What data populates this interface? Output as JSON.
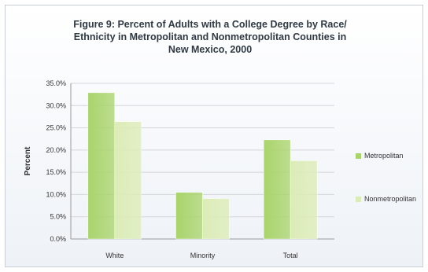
{
  "chart_data": {
    "type": "bar",
    "title": "Figure 9: Percent of Adults with a College Degree by Race/ Ethnicity in Metropolitan and Nonmetropolitan Counties in New Mexico, 2000",
    "title_lines": [
      "Figure 9: Percent of Adults with a College Degree by Race/",
      "Ethnicity in Metropolitan and Nonmetropolitan Counties in",
      "New Mexico, 2000"
    ],
    "ylabel": "Percent",
    "xlabel": "",
    "categories": [
      "White",
      "Minority",
      "Total"
    ],
    "series": [
      {
        "name": "Metropolitan",
        "values": [
          32.9,
          10.5,
          22.3
        ],
        "color": "#a9d46b"
      },
      {
        "name": "Nonmetropolitan",
        "values": [
          26.4,
          9.1,
          17.6
        ],
        "color": "#dcecb6"
      }
    ],
    "ylim": [
      0,
      35
    ],
    "yticks": [
      "0.0%",
      "5.0%",
      "10.0%",
      "15.0%",
      "20.0%",
      "25.0%",
      "30.0%",
      "35.0%"
    ],
    "grid": true,
    "legend_position": "right"
  }
}
